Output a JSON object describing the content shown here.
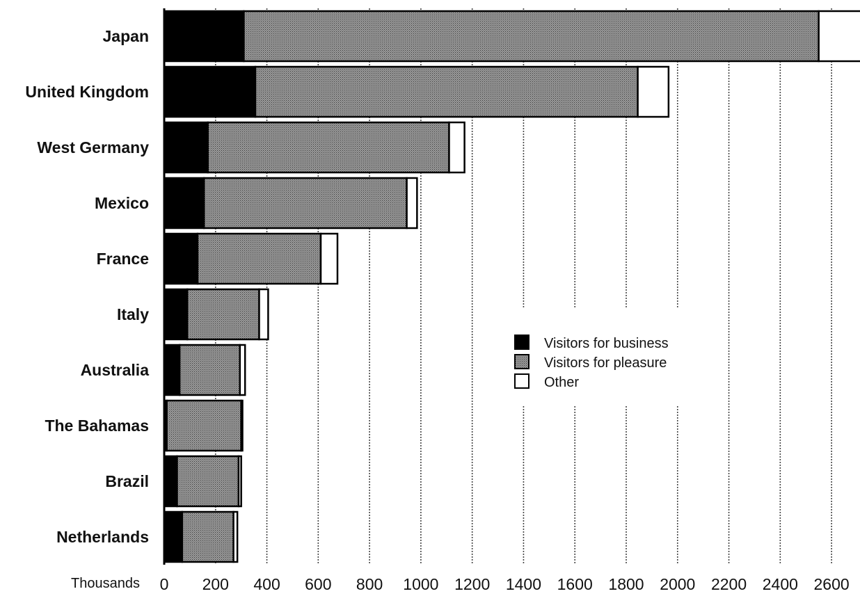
{
  "chart_data": {
    "type": "bar",
    "orientation": "horizontal",
    "stacked": true,
    "categories": [
      "Japan",
      "United Kingdom",
      "West Germany",
      "Mexico",
      "France",
      "Italy",
      "Australia",
      "The Bahamas",
      "Brazil",
      "Netherlands"
    ],
    "series": [
      {
        "name": "Visitors for business",
        "values": [
          310,
          355,
          170,
          155,
          130,
          90,
          60,
          10,
          50,
          70
        ],
        "color": "#000000"
      },
      {
        "name": "Visitors for pleasure",
        "values": [
          2240,
          1490,
          940,
          790,
          480,
          280,
          235,
          290,
          240,
          200
        ],
        "color": "#8a8a8a"
      },
      {
        "name": "Other",
        "values": [
          165,
          120,
          60,
          40,
          65,
          35,
          20,
          5,
          10,
          15
        ],
        "color": "#ffffff"
      }
    ],
    "xlabel": "Thousands",
    "xlim": [
      0,
      2700
    ],
    "xticks": [
      0,
      200,
      400,
      600,
      800,
      1000,
      1200,
      1400,
      1600,
      1800,
      2000,
      2200,
      2400,
      2600
    ],
    "grid": true,
    "legend_position": "center-right"
  }
}
